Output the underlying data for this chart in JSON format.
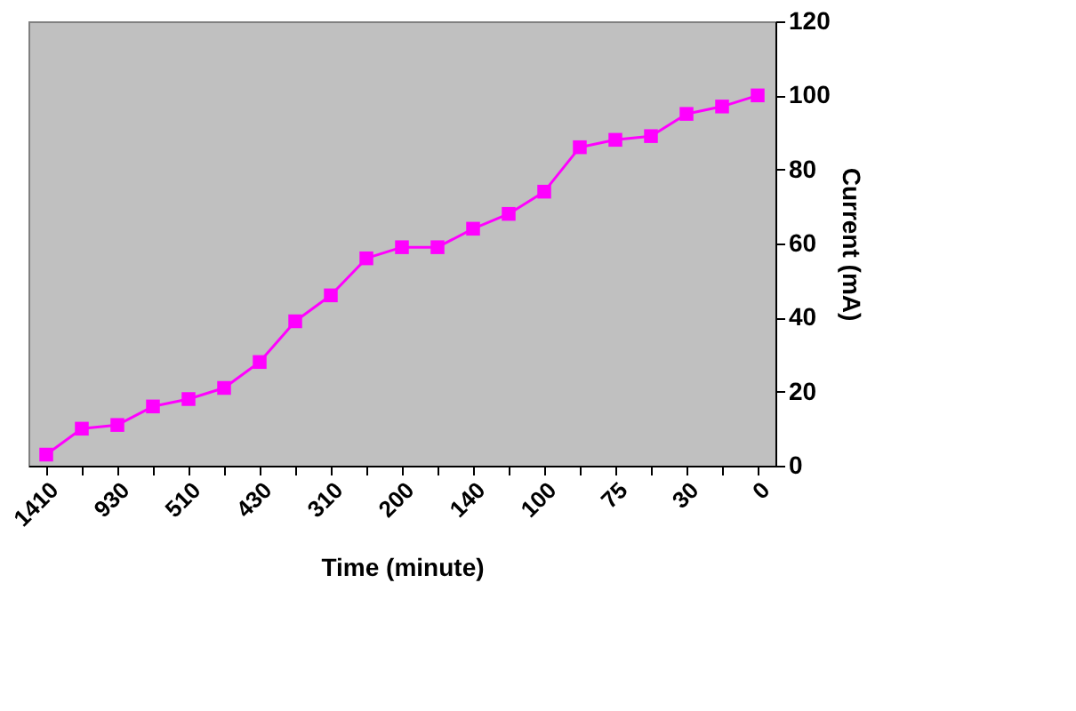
{
  "chart_data": {
    "type": "line",
    "xlabel": "Time (minute)",
    "ylabel": "Current (mA)",
    "categories": [
      "1410",
      null,
      "930",
      null,
      "510",
      null,
      "430",
      null,
      "310",
      null,
      "200",
      null,
      "140",
      null,
      "100",
      null,
      "75",
      null,
      "30",
      null,
      "0"
    ],
    "series": [
      {
        "color": "#ff00ff",
        "values": [
          3,
          10,
          11,
          16,
          18,
          21,
          28,
          39,
          46,
          56,
          59,
          59,
          64,
          68,
          74,
          86,
          88,
          89,
          95,
          97,
          100
        ]
      }
    ],
    "ylim": [
      0,
      120
    ],
    "yticks": [
      0,
      20,
      40,
      60,
      80,
      100,
      120
    ],
    "grid": false,
    "marker": "square",
    "line_style": "solid"
  }
}
